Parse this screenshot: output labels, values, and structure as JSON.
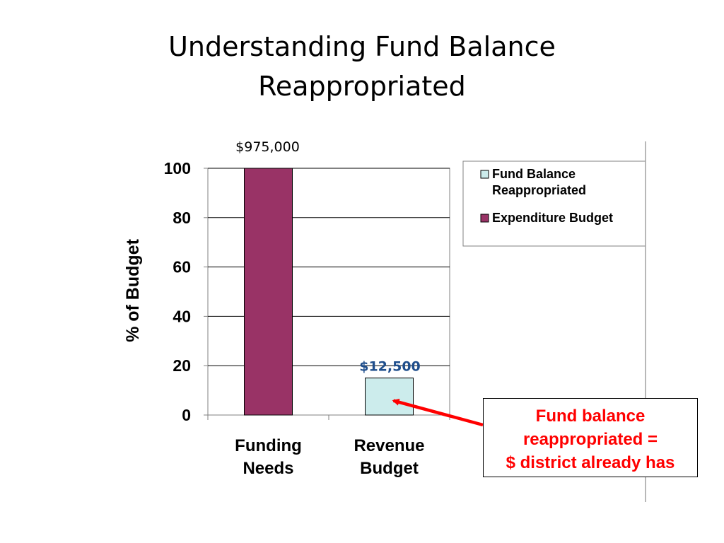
{
  "slide": {
    "title_line1": "Understanding Fund Balance",
    "title_line2": "Reappropriated"
  },
  "callout": {
    "line1": "Fund balance",
    "line2": "reappropriated =",
    "line3": "$ district already has",
    "text_color": "#FF0000",
    "arrow_color": "#FF0000"
  },
  "chart_data": {
    "type": "bar",
    "categories": [
      [
        "Funding",
        "Needs"
      ],
      [
        "Revenue",
        "Budget"
      ]
    ],
    "series": [
      {
        "name": "Expenditure Budget",
        "color": "#993366",
        "values": [
          100,
          null
        ]
      },
      {
        "name": "Fund Balance Reappropriated",
        "color": "#CCECEC",
        "values": [
          null,
          15
        ]
      }
    ],
    "legend_entries": [
      {
        "label_lines": [
          "Fund Balance",
          "Reappropriated"
        ],
        "color": "#CCECEC"
      },
      {
        "label_lines": [
          "Expenditure Budget"
        ],
        "color": "#993366"
      }
    ],
    "data_labels": [
      "$975,000",
      "$12,500"
    ],
    "data_label_colors": [
      "#000000",
      "#1F4E8C"
    ],
    "ylabel": "% of Budget",
    "xlabel": "",
    "ylim": [
      0,
      100
    ],
    "yticks": [
      0,
      20,
      40,
      60,
      80,
      100
    ],
    "grid": true,
    "legend_position": "right"
  }
}
